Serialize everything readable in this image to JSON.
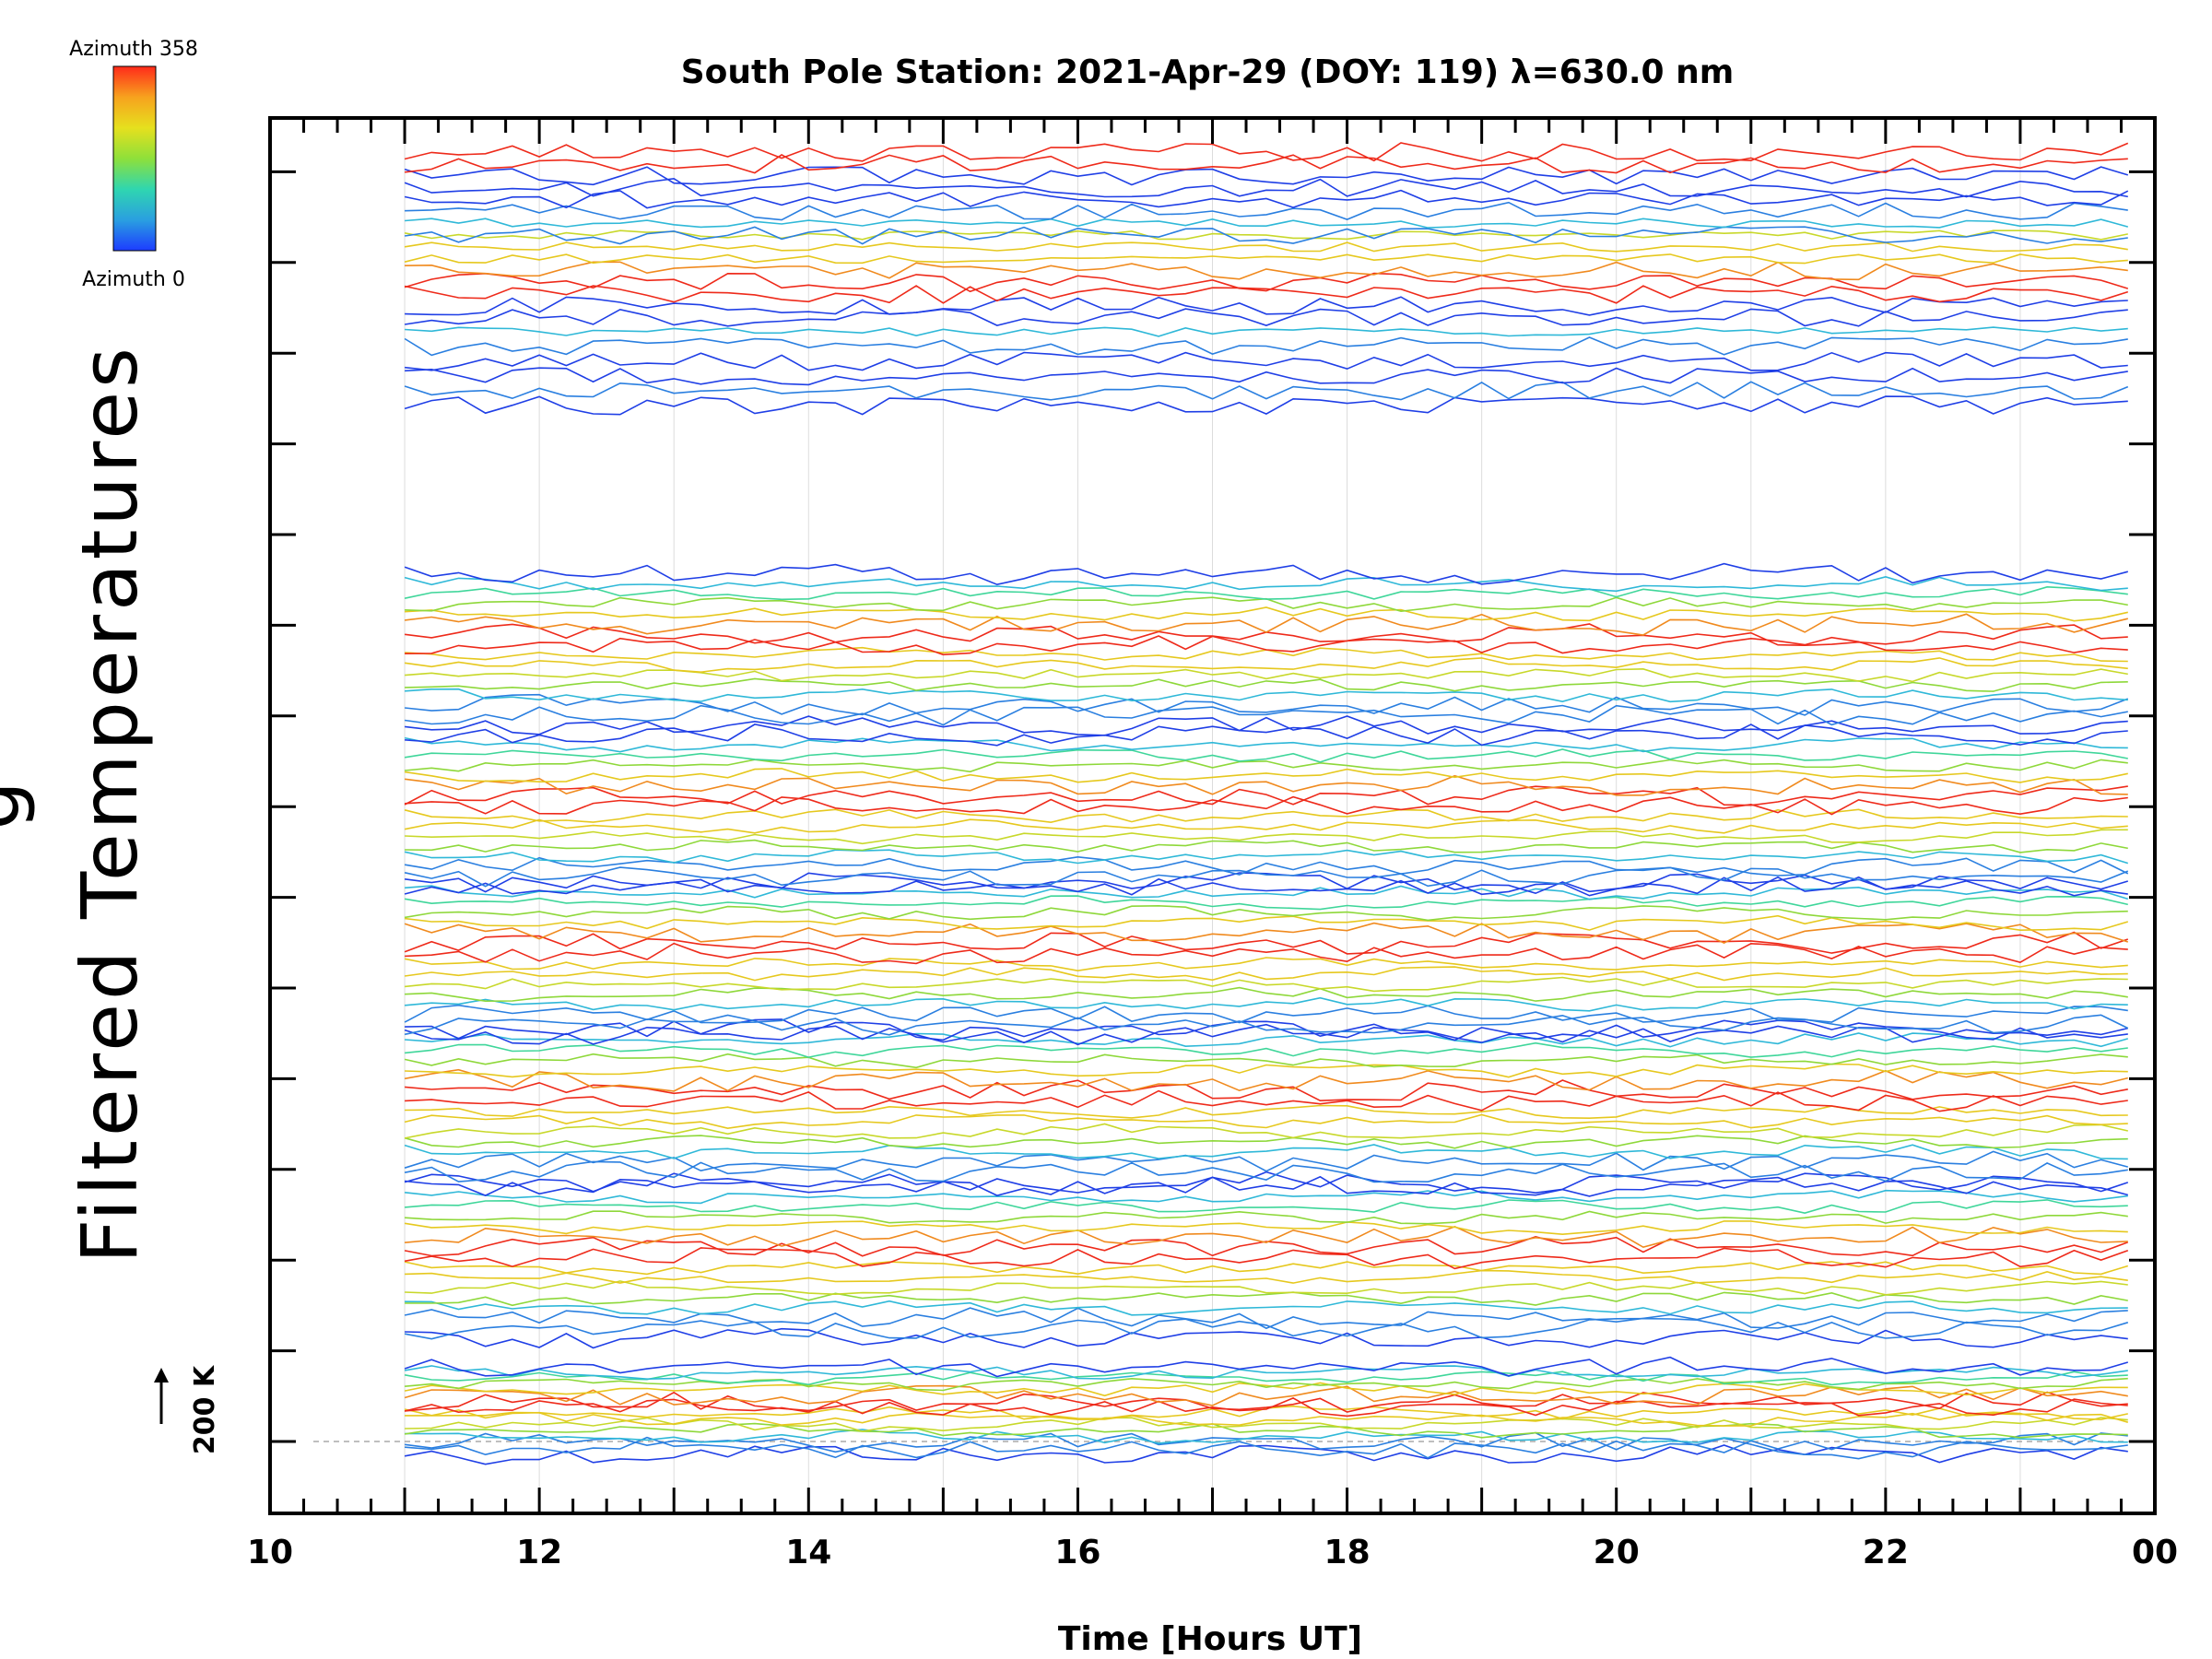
{
  "chart_data": {
    "type": "line",
    "title": "South Pole Station: 2021-Apr-29 (DOY: 119) λ=630.0 nm",
    "xlabel": "Time [Hours UT]",
    "ylabel": "Filtered Temperatures",
    "ylabel_cut": "g",
    "x_range": [
      10,
      24
    ],
    "x_ticks": [
      "10",
      "12",
      "14",
      "16",
      "18",
      "20",
      "22",
      "00"
    ],
    "x_tick_values": [
      10,
      12,
      14,
      16,
      18,
      20,
      22,
      24
    ],
    "x_minor_step_hours": 0.25,
    "y_offset_step_K": 100,
    "n_offset_ticks": 15,
    "n_lines": 96,
    "time_start": 11.0,
    "time_end": 23.85,
    "time_step_hours": 0.2,
    "grid": true,
    "scale_bar": {
      "label": "200 K",
      "value_K": 200
    },
    "colorbar": {
      "top_label": "Azimuth  358",
      "bottom_label": "Azimuth  0",
      "min": 0,
      "max": 358,
      "colors": [
        "#1d3cff",
        "#2a9fe0",
        "#2fd6b0",
        "#8ee03a",
        "#e6e01e",
        "#f7a21e",
        "#ff2a1a"
      ]
    },
    "palette": [
      "#1f3fe6",
      "#2a7fe0",
      "#2fb8d8",
      "#3fd69a",
      "#8ed83a",
      "#c8d82a",
      "#e6c81e",
      "#f08a1e",
      "#ee2a1a"
    ]
  }
}
